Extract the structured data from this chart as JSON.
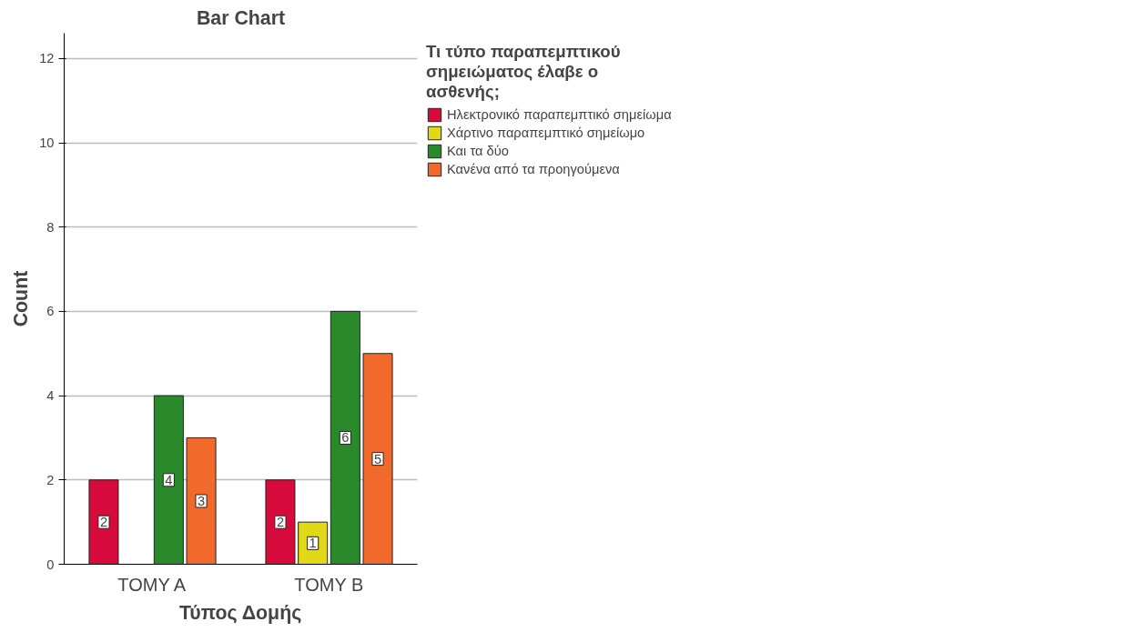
{
  "chart_data": {
    "type": "bar",
    "title": "Bar Chart",
    "xlabel": "Τύπος Δομής",
    "ylabel": "Count",
    "legend_title": "Τι τύπο παραπεμπτικού σημειώματος έλαβε ο ασθενής;",
    "categories": [
      "TOMY A",
      "TOMY B"
    ],
    "series": [
      {
        "name": "Ηλεκτρονικό παραπεμπτικό σημείωμα",
        "color": "#d70a3c",
        "values": [
          2,
          2
        ]
      },
      {
        "name": "Χάρτινο παραπεμπτικό σημείωμο",
        "color": "#e1d817",
        "values": [
          null,
          1
        ]
      },
      {
        "name": "Και τα δύο",
        "color": "#2a8a2b",
        "values": [
          4,
          6
        ]
      },
      {
        "name": "Κανένα από τα προηγούμενα",
        "color": "#f26a2b",
        "values": [
          3,
          5
        ]
      }
    ],
    "ylim": [
      0,
      12.6
    ],
    "yticks": [
      0,
      2,
      4,
      6,
      8,
      10,
      12
    ],
    "grid": "y",
    "legend": "top right",
    "data_labels": true
  }
}
